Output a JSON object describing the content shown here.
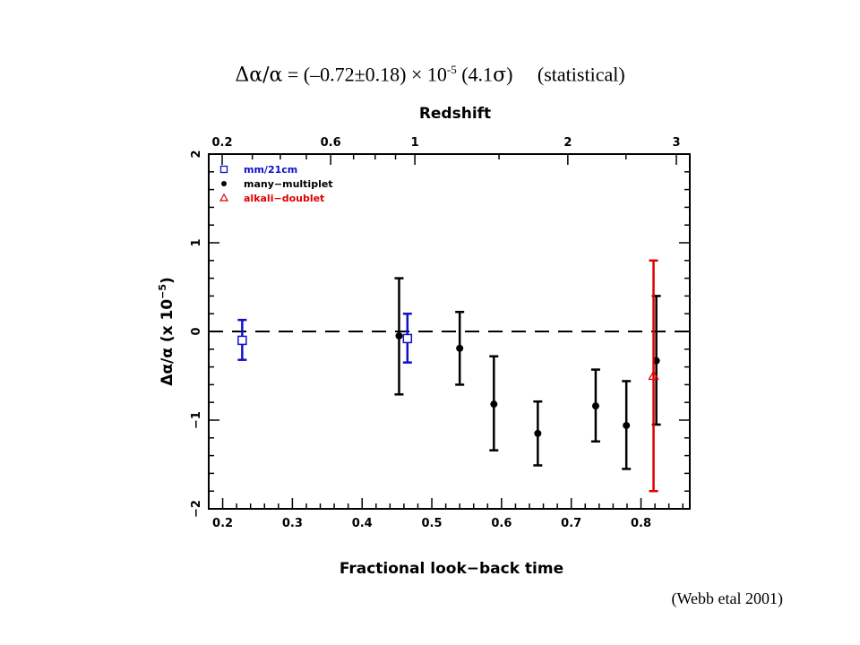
{
  "headline": {
    "delta_alpha": "Δα/α",
    "eq_value": " = (–0.72±0.18) × 10",
    "exponent": "-5",
    "sigma_pre": "  (4.1",
    "sigma_sym": "σ",
    "sigma_post": ")",
    "note": "     (statistical)"
  },
  "credit": "(Webb etal 2001)",
  "colors": {
    "axes": "#000000",
    "mm21cm": "#1010c8",
    "many_multiplet": "#000000",
    "alkali_doublet": "#e00000"
  },
  "chart_data": {
    "type": "scatter",
    "title": "",
    "xlabel": "Fractional look−back time",
    "ylabel_main": "Δα/α (x 10",
    "ylabel_exp": "−5",
    "ylabel_close": ")",
    "top_xlabel": "Redshift",
    "xlim": [
      0.18,
      0.87
    ],
    "ylim": [
      -2,
      2
    ],
    "xticks": [
      {
        "value": 0.2,
        "label": "0.2"
      },
      {
        "value": 0.3,
        "label": "0.3"
      },
      {
        "value": 0.4,
        "label": "0.4"
      },
      {
        "value": 0.5,
        "label": "0.5"
      },
      {
        "value": 0.6,
        "label": "0.6"
      },
      {
        "value": 0.7,
        "label": "0.7"
      },
      {
        "value": 0.8,
        "label": "0.8"
      }
    ],
    "yticks": [
      {
        "value": -2,
        "label": "−2"
      },
      {
        "value": -1,
        "label": "−1"
      },
      {
        "value": 0,
        "label": "0"
      },
      {
        "value": 1,
        "label": "1"
      },
      {
        "value": 2,
        "label": "2"
      }
    ],
    "top_ticks": [
      {
        "value": 0.2,
        "label": "0.2"
      },
      {
        "value": 0.6,
        "label": "0.6"
      },
      {
        "value": 1,
        "label": "1"
      },
      {
        "value": 2,
        "label": "2"
      },
      {
        "value": 3,
        "label": "3"
      }
    ],
    "reference_line": {
      "y": 0,
      "style": "dashed"
    },
    "legend_position": "top-left",
    "series": [
      {
        "name": "mm/21cm",
        "marker": "open-square",
        "color": "#1010c8",
        "points": [
          {
            "x": 0.228,
            "y": -0.1,
            "yerr_low": -0.32,
            "yerr_high": 0.13
          },
          {
            "x": 0.465,
            "y": -0.08,
            "yerr_low": -0.35,
            "yerr_high": 0.2
          }
        ]
      },
      {
        "name": "many−multiplet",
        "marker": "filled-circle",
        "color": "#000000",
        "points": [
          {
            "x": 0.453,
            "y": -0.05,
            "yerr_low": -0.71,
            "yerr_high": 0.6
          },
          {
            "x": 0.54,
            "y": -0.19,
            "yerr_low": -0.6,
            "yerr_high": 0.22
          },
          {
            "x": 0.589,
            "y": -0.82,
            "yerr_low": -1.34,
            "yerr_high": -0.28
          },
          {
            "x": 0.652,
            "y": -1.15,
            "yerr_low": -1.51,
            "yerr_high": -0.79
          },
          {
            "x": 0.735,
            "y": -0.84,
            "yerr_low": -1.24,
            "yerr_high": -0.43
          },
          {
            "x": 0.779,
            "y": -1.06,
            "yerr_low": -1.55,
            "yerr_high": -0.56
          },
          {
            "x": 0.822,
            "y": -0.33,
            "yerr_low": -1.05,
            "yerr_high": 0.4
          }
        ]
      },
      {
        "name": "alkali−doublet",
        "marker": "open-triangle",
        "color": "#e00000",
        "points": [
          {
            "x": 0.818,
            "y": -0.5,
            "yerr_low": -1.8,
            "yerr_high": 0.8
          }
        ]
      }
    ]
  }
}
